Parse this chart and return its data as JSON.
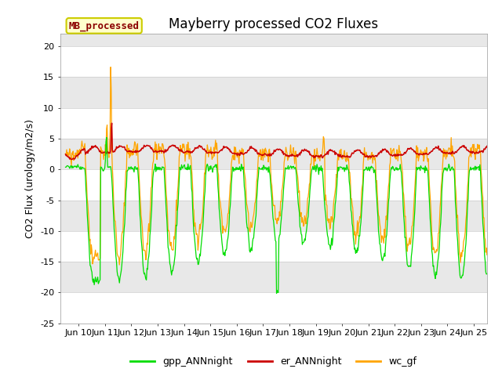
{
  "title": "Mayberry processed CO2 Fluxes",
  "ylabel": "CO2 Flux (urology/m2/s)",
  "ylim": [
    -25,
    22
  ],
  "xlim": [
    9.3,
    25.5
  ],
  "xtick_days": [
    10,
    11,
    12,
    13,
    14,
    15,
    16,
    17,
    18,
    19,
    20,
    21,
    22,
    23,
    24,
    25
  ],
  "xtick_labels": [
    "Jun 10",
    "Jun 11",
    "Jun 12",
    "Jun 13",
    "Jun 14",
    "Jun 15",
    "Jun 16",
    "Jun 17",
    "Jun 18",
    "Jun 19",
    "Jun 20",
    "Jun 21",
    "Jun 22",
    "Jun 23",
    "Jun 24",
    "Jun 25"
  ],
  "yticks": [
    20,
    15,
    10,
    5,
    0,
    -5,
    -10,
    -15,
    -20,
    -25
  ],
  "color_gpp": "#00dd00",
  "color_er": "#cc0000",
  "color_wc": "#ffa500",
  "legend_label": "MB_processed",
  "legend_text_color": "#8b0000",
  "legend_bg": "#ffffcc",
  "legend_border": "#cccc00",
  "line_labels": [
    "gpp_ANNnight",
    "er_ANNnight",
    "wc_gf"
  ],
  "fig_bg": "#ffffff",
  "ax_bg": "#ffffff",
  "gray_band": "#e8e8e8",
  "white_band": "#ffffff",
  "title_fs": 12,
  "label_fs": 9,
  "tick_fs": 8
}
